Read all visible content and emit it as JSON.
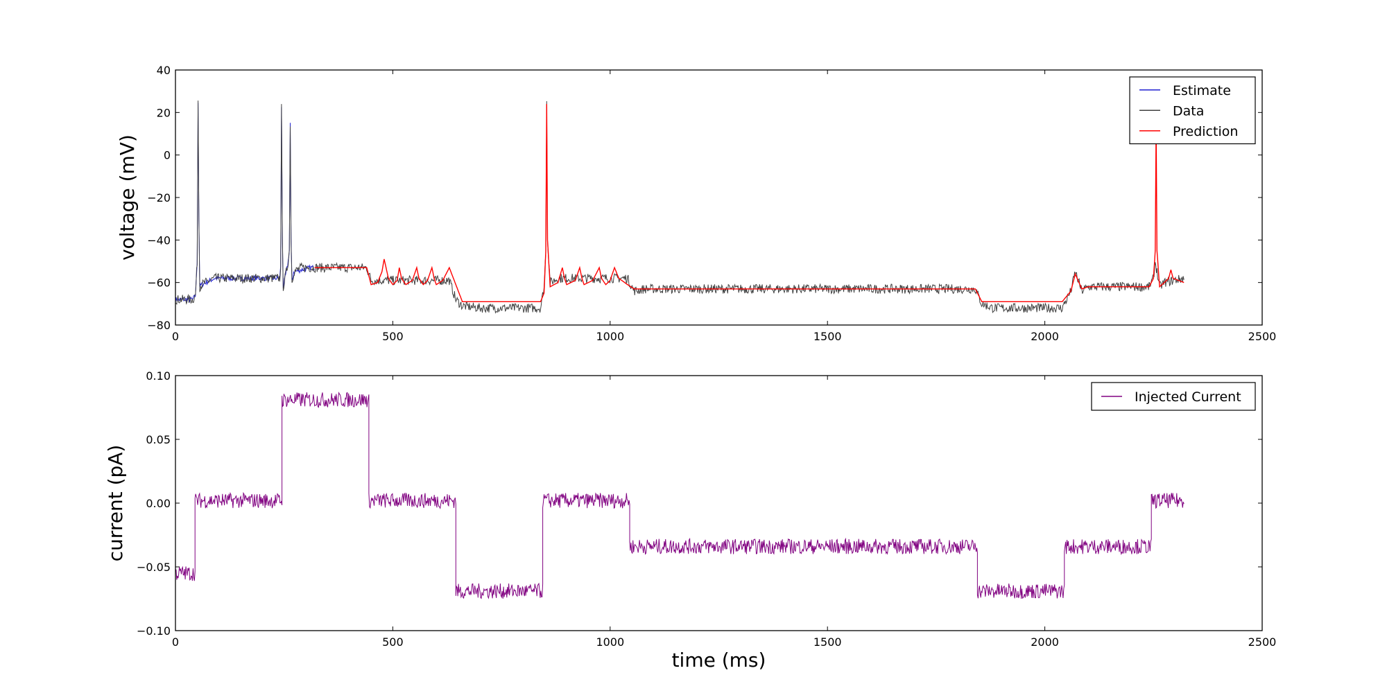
{
  "chart_data": [
    {
      "type": "line",
      "title": "",
      "xlabel": "",
      "ylabel": "voltage (mV)",
      "xlim": [
        0,
        2500
      ],
      "ylim": [
        -80,
        40
      ],
      "xticks": [
        "0",
        "500",
        "1000",
        "1500",
        "2000",
        "2500"
      ],
      "yticks": [
        "−80",
        "−60",
        "−40",
        "−20",
        "0",
        "20",
        "40"
      ],
      "legend_position": "top-right",
      "grid": false,
      "series": [
        {
          "name": "Estimate",
          "color": "#1f1fd0",
          "x": [
            0,
            40,
            46,
            50,
            52,
            54,
            56,
            60,
            70,
            90,
            120,
            200,
            240,
            242,
            244,
            246,
            248,
            252,
            258,
            262,
            264,
            266,
            268,
            272,
            290,
            310,
            320
          ],
          "y": [
            -68,
            -68,
            -66,
            -50,
            25,
            -30,
            -62,
            -61,
            -60,
            -58,
            -58,
            -58,
            -58,
            -52,
            22,
            -40,
            -62,
            -58,
            -52,
            -45,
            15,
            -40,
            -60,
            -55,
            -54,
            -53,
            -53
          ]
        },
        {
          "name": "Data",
          "color": "#404040",
          "x": [
            0,
            40,
            46,
            50,
            52,
            54,
            56,
            60,
            70,
            90,
            120,
            200,
            240,
            242,
            244,
            246,
            248,
            252,
            258,
            262,
            264,
            266,
            268,
            272,
            290,
            320,
            440,
            450,
            630,
            645,
            660,
            700,
            840,
            848,
            852,
            854,
            856,
            862,
            880,
            1040,
            1055,
            1080,
            1840,
            1855,
            1880,
            2040,
            2060,
            2070,
            2085,
            2100,
            2240,
            2250,
            2254,
            2258,
            2264,
            2275,
            2320
          ],
          "y": [
            -68,
            -68,
            -66,
            -50,
            26,
            -30,
            -62,
            -61,
            -60,
            -58,
            -58,
            -58,
            -58,
            -52,
            22,
            -40,
            -62,
            -58,
            -52,
            -45,
            15,
            -40,
            -60,
            -55,
            -53,
            -53,
            -53,
            -59,
            -59,
            -68,
            -71,
            -72,
            -72,
            -62,
            -45,
            27,
            -40,
            -60,
            -58,
            -58,
            -64,
            -63,
            -63,
            -70,
            -72,
            -72,
            -64,
            -55,
            -64,
            -62,
            -62,
            -58,
            -50,
            -55,
            -62,
            -60,
            -58
          ]
        },
        {
          "name": "Prediction",
          "color": "#ff0000",
          "x": [
            320,
            440,
            450,
            465,
            475,
            480,
            490,
            500,
            510,
            515,
            520,
            530,
            545,
            555,
            560,
            570,
            580,
            590,
            595,
            600,
            615,
            630,
            645,
            660,
            700,
            840,
            848,
            852,
            854,
            856,
            862,
            880,
            890,
            895,
            900,
            920,
            930,
            935,
            940,
            960,
            975,
            980,
            990,
            1000,
            1010,
            1020,
            1040,
            1055,
            1080,
            1840,
            1855,
            1880,
            2040,
            2060,
            2070,
            2085,
            2100,
            2240,
            2250,
            2254,
            2256,
            2258,
            2264,
            2275,
            2285,
            2290,
            2295,
            2320
          ],
          "y": [
            -53,
            -53,
            -61,
            -60,
            -55,
            -49,
            -58,
            -61,
            -59,
            -53,
            -58,
            -61,
            -59,
            -53,
            -58,
            -61,
            -59,
            -53,
            -58,
            -61,
            -59,
            -53,
            -61,
            -69,
            -69,
            -69,
            -65,
            -45,
            24,
            -40,
            -62,
            -60,
            -53,
            -58,
            -61,
            -59,
            -53,
            -58,
            -61,
            -59,
            -53,
            -58,
            -61,
            -59,
            -53,
            -58,
            -61,
            -63,
            -63,
            -63,
            -69,
            -69,
            -69,
            -64,
            -56,
            -63,
            -62,
            -62,
            -58,
            -45,
            14,
            -45,
            -62,
            -60,
            -58,
            -54,
            -58,
            -60
          ]
        }
      ]
    },
    {
      "type": "line",
      "title": "",
      "xlabel": "time (ms)",
      "ylabel": "current (pA)",
      "xlim": [
        0,
        2500
      ],
      "ylim": [
        -0.1,
        0.1
      ],
      "xticks": [
        "0",
        "500",
        "1000",
        "1500",
        "2000",
        "2500"
      ],
      "yticks": [
        "−0.10",
        "−0.05",
        "0.00",
        "0.05",
        "0.10"
      ],
      "legend_position": "top-right",
      "grid": false,
      "series": [
        {
          "name": "Injected Current",
          "color": "#800080",
          "x": [
            0,
            45,
            45,
            245,
            245,
            445,
            445,
            645,
            645,
            845,
            845,
            1045,
            1045,
            1845,
            1845,
            2045,
            2045,
            2245,
            2245,
            2320
          ],
          "y": [
            -0.055,
            -0.055,
            0.002,
            0.002,
            0.081,
            0.081,
            0.002,
            0.002,
            -0.069,
            -0.069,
            0.002,
            0.002,
            -0.034,
            -0.034,
            -0.069,
            -0.069,
            -0.034,
            -0.034,
            0.002,
            0.002
          ]
        }
      ]
    }
  ]
}
